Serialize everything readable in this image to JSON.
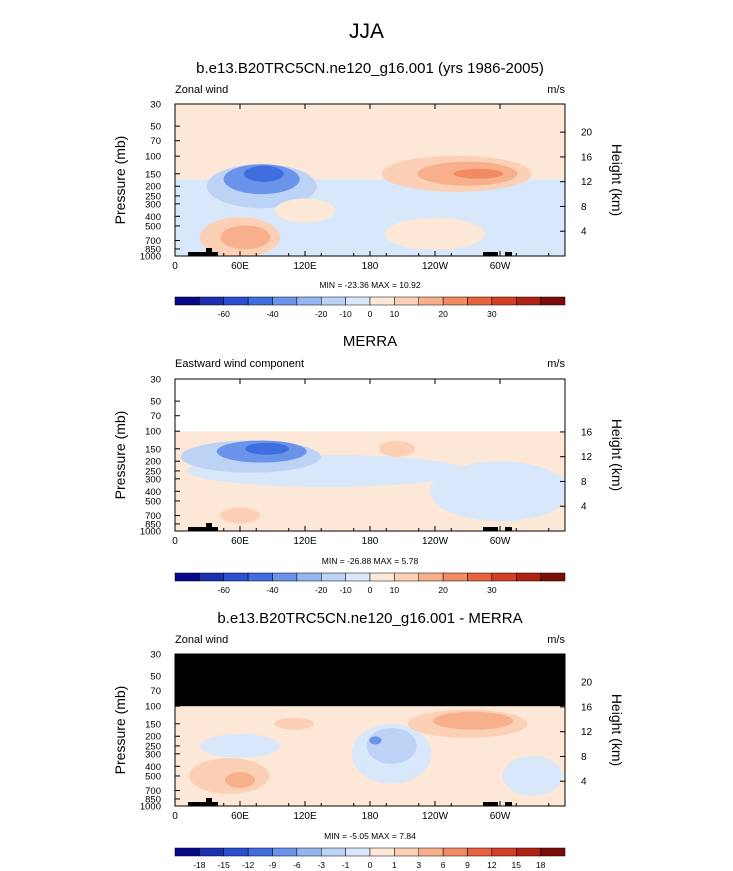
{
  "figure": {
    "main_title": "JJA"
  },
  "colors": {
    "bg": "#ffffff",
    "terrain": "#000000",
    "palette": [
      "#08088a",
      "#1b2fb0",
      "#2a4fd0",
      "#3f6ee0",
      "#6a93ea",
      "#94b6f0",
      "#bcd3f6",
      "#d9e7fa",
      "#fde8d8",
      "#fbd0b4",
      "#f8b08c",
      "#f28a63",
      "#e8623f",
      "#d23e26",
      "#b02214",
      "#7a0c0a"
    ]
  },
  "chart_data": [
    {
      "type": "heatmap",
      "title": "b.e13.B20TRC5CN.ne120_g16.001 (yrs 1986-2005)",
      "left_label": "Zonal wind",
      "units": "m/s",
      "ylabel": "Pressure (mb)",
      "ylabel_right": "Height (km)",
      "x_ticks": [
        "0",
        "60E",
        "120E",
        "180",
        "120W",
        "60W"
      ],
      "y_ticks": [
        "30",
        "50",
        "70",
        "100",
        "150",
        "200",
        "250",
        "300",
        "400",
        "500",
        "700",
        "850",
        "1000"
      ],
      "height_ticks": [
        "20",
        "16",
        "12",
        "8",
        "4"
      ],
      "min_max": "MIN = -23.36  MAX =  10.92",
      "colorbar_labels": [
        "-60",
        "-40",
        "-20",
        "-10",
        "0",
        "10",
        "20",
        "30"
      ],
      "masked_above": null,
      "features": [
        {
          "kind": "jet-easterly",
          "lon": 80,
          "p": 150,
          "min": -23.36
        },
        {
          "kind": "westerly",
          "lon": 265,
          "p": 150,
          "max": 10.92
        },
        {
          "kind": "low-westerly",
          "lon": 60,
          "p": 700,
          "max": 10
        }
      ]
    },
    {
      "type": "heatmap",
      "title": "MERRA",
      "left_label": "Eastward wind component",
      "units": "m/s",
      "ylabel": "Pressure (mb)",
      "ylabel_right": "Height (km)",
      "x_ticks": [
        "0",
        "60E",
        "120E",
        "180",
        "120W",
        "60W"
      ],
      "y_ticks": [
        "30",
        "50",
        "70",
        "100",
        "150",
        "200",
        "250",
        "300",
        "400",
        "500",
        "700",
        "850",
        "1000"
      ],
      "height_ticks": [
        "16",
        "12",
        "8",
        "4"
      ],
      "min_max": "MIN = -26.88  MAX =   5.78",
      "colorbar_labels": [
        "-60",
        "-40",
        "-20",
        "-10",
        "0",
        "10",
        "20",
        "30"
      ],
      "masked_above": "100 mb",
      "features": [
        {
          "kind": "jet-easterly",
          "lon": 85,
          "p": 150,
          "min": -26.88
        },
        {
          "kind": "westerly",
          "lon": 205,
          "p": 150,
          "max": 5.78
        }
      ]
    },
    {
      "type": "heatmap",
      "title": "b.e13.B20TRC5CN.ne120_g16.001 - MERRA",
      "left_label": "Zonal wind",
      "units": "m/s",
      "ylabel": "Pressure (mb)",
      "ylabel_right": "Height (km)",
      "x_ticks": [
        "0",
        "60E",
        "120E",
        "180",
        "120W",
        "60W"
      ],
      "y_ticks": [
        "30",
        "50",
        "70",
        "100",
        "150",
        "200",
        "250",
        "300",
        "400",
        "500",
        "700",
        "850",
        "1000"
      ],
      "height_ticks": [
        "20",
        "16",
        "12",
        "8",
        "4"
      ],
      "min_max": "MIN =  -5.05  MAX =   7.84",
      "colorbar_labels": [
        "-18",
        "-15",
        "-12",
        "-9",
        "-6",
        "-3",
        "-1",
        "0",
        "1",
        "3",
        "6",
        "9",
        "12",
        "15",
        "18"
      ],
      "masked_above": "100 mb (black)",
      "features": [
        {
          "kind": "negative",
          "lon": 200,
          "p": 250,
          "min": -5.05
        },
        {
          "kind": "positive",
          "lon": 270,
          "p": 150,
          "max": 7.84
        },
        {
          "kind": "positive",
          "lon": 55,
          "p": 500,
          "max": 6
        }
      ]
    }
  ]
}
